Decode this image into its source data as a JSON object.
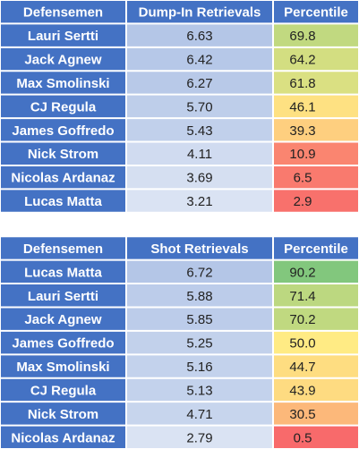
{
  "tables": [
    {
      "header": [
        "Defensemen",
        "Dump-In Retrievals",
        "Percentile"
      ],
      "rows": [
        [
          "Lauri Sertti",
          "6.63",
          "69.8"
        ],
        [
          "Jack Agnew",
          "6.42",
          "64.2"
        ],
        [
          "Max Smolinski",
          "6.27",
          "61.8"
        ],
        [
          "CJ Regula",
          "5.70",
          "46.1"
        ],
        [
          "James Goffredo",
          "5.43",
          "39.3"
        ],
        [
          "Nick Strom",
          "4.11",
          "10.9"
        ],
        [
          "Nicolas Ardanaz",
          "3.69",
          "6.5"
        ],
        [
          "Lucas Matta",
          "3.21",
          "2.9"
        ]
      ]
    },
    {
      "header": [
        "Defensemen",
        "Shot Retrievals",
        "Percentile"
      ],
      "rows": [
        [
          "Lucas Matta",
          "6.72",
          "90.2"
        ],
        [
          "Lauri Sertti",
          "5.88",
          "71.4"
        ],
        [
          "Jack Agnew",
          "5.85",
          "70.2"
        ],
        [
          "James Goffredo",
          "5.25",
          "50.0"
        ],
        [
          "Max Smolinski",
          "5.16",
          "44.7"
        ],
        [
          "CJ Regula",
          "5.13",
          "43.9"
        ],
        [
          "Nick Strom",
          "4.71",
          "30.5"
        ],
        [
          "Nicolas Ardanaz",
          "2.79",
          "0.5"
        ]
      ]
    }
  ]
}
